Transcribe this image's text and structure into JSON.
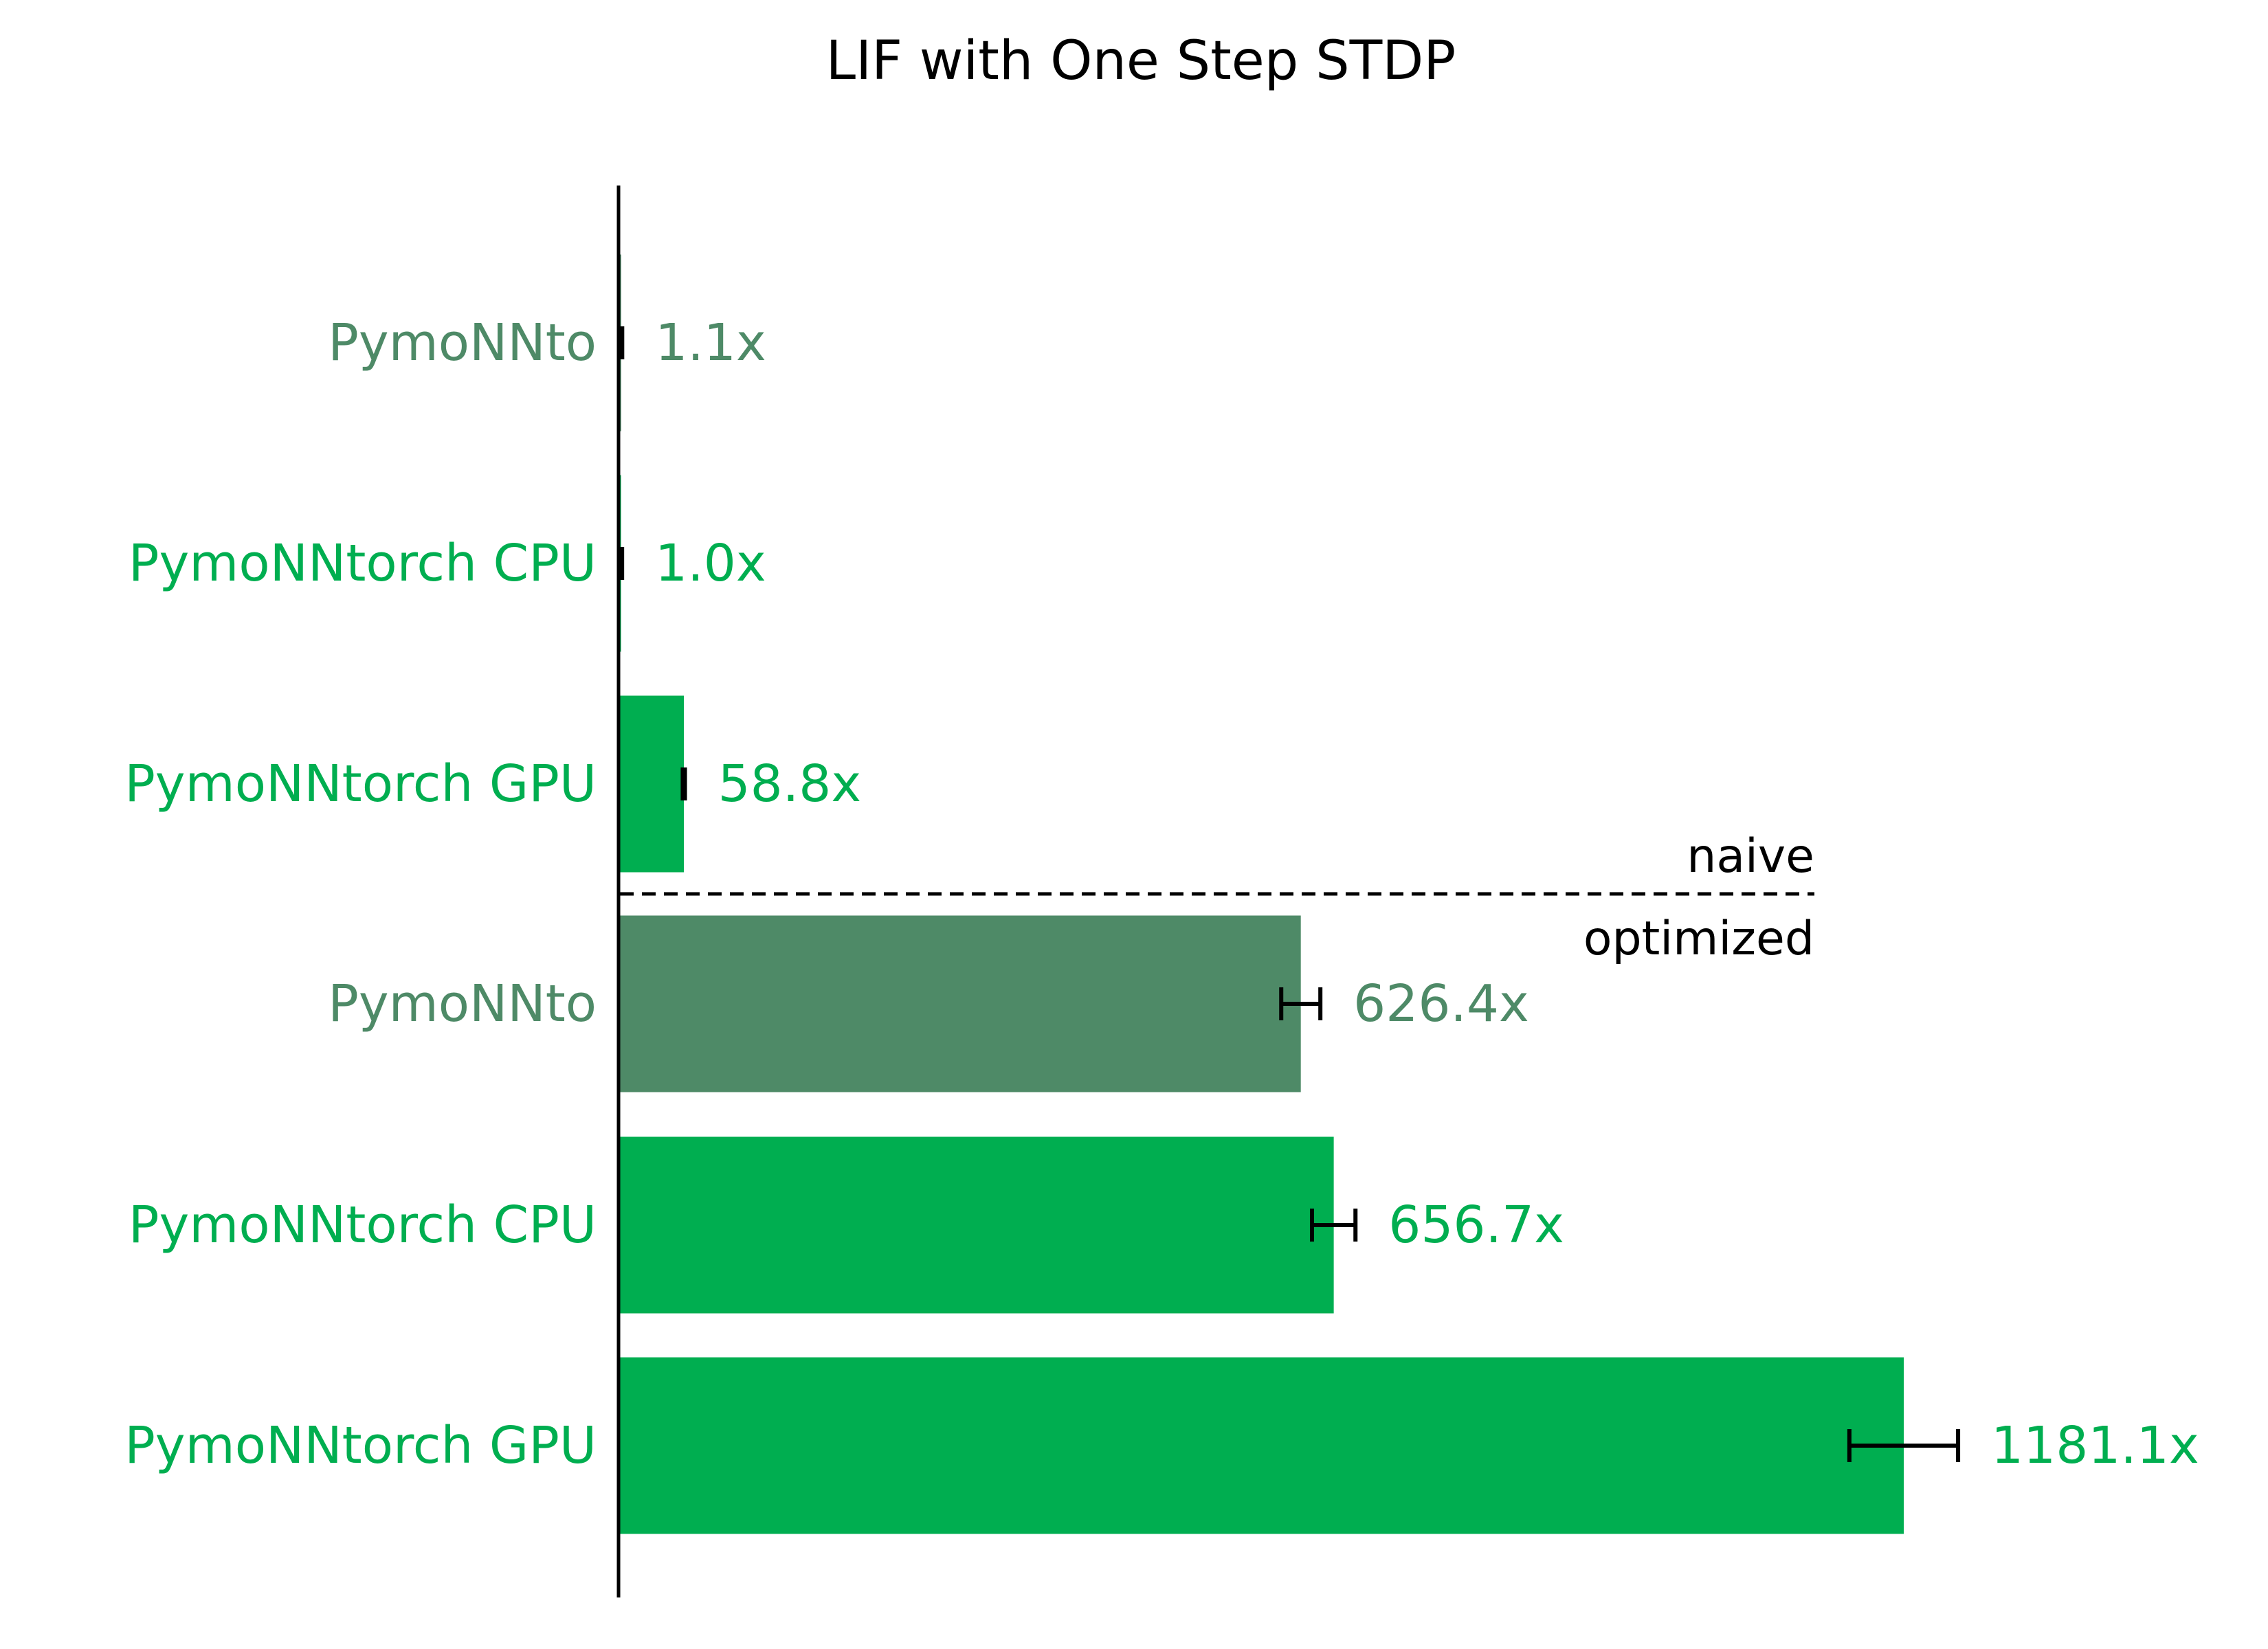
{
  "chart_data": {
    "type": "bar",
    "orientation": "horizontal",
    "title": "LIF with One Step STDP",
    "xlabel": "",
    "ylabel": "",
    "xlim": [
      0,
      1181.1
    ],
    "grid": false,
    "colors": {
      "pymonnto": "#4e8a67",
      "pymonntorch": "#00ae50",
      "axis": "#000000",
      "errorbar": "#000000"
    },
    "categories": [
      "PymoNNto",
      "PymoNNtorch CPU",
      "PymoNNtorch GPU",
      "PymoNNto",
      "PymoNNtorch CPU",
      "PymoNNtorch GPU"
    ],
    "values": [
      1.1,
      1.0,
      58.8,
      626.4,
      656.7,
      1181.1
    ],
    "errors": [
      1,
      1,
      1,
      18,
      20,
      50
    ],
    "value_labels": [
      "1.1x",
      "1.0x",
      "58.8x",
      "626.4x",
      "656.7x",
      "1181.1x"
    ],
    "bar_color_keys": [
      "pymonnto",
      "pymonntorch",
      "pymonntorch",
      "pymonnto",
      "pymonntorch",
      "pymonntorch"
    ],
    "divider": {
      "after_index": 2,
      "label_above": "naive",
      "label_below": "optimized"
    }
  }
}
